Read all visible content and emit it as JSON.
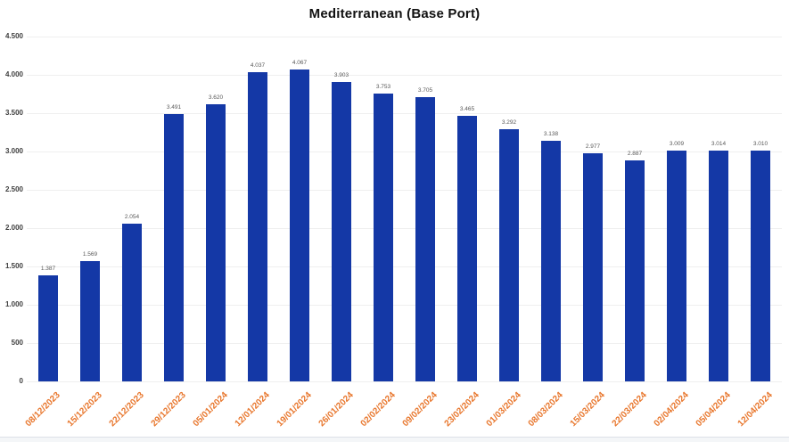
{
  "title": "Mediterranean (Base Port)",
  "colors": {
    "bar": "#1438a6",
    "date_label": "#e8762c",
    "value_label": "#595959",
    "axis_tick_label": "#3f3f3f",
    "gridline": "#efefef"
  },
  "chart_data": {
    "type": "bar",
    "title": "Mediterranean (Base Port)",
    "xlabel": "",
    "ylabel": "",
    "categories": [
      "08/12/2023",
      "15/12/2023",
      "22/12/2023",
      "29/12/2023",
      "05/01/2024",
      "12/01/2024",
      "19/01/2024",
      "26/01/2024",
      "02/02/2024",
      "09/02/2024",
      "23/02/2024",
      "01/03/2024",
      "08/03/2024",
      "15/03/2024",
      "22/03/2024",
      "02/04/2024",
      "05/04/2024",
      "12/04/2024"
    ],
    "values": [
      1387,
      1569,
      2054,
      3491,
      3620,
      4037,
      4067,
      3903,
      3753,
      3705,
      3465,
      3292,
      3138,
      2977,
      2887,
      3009,
      3014,
      3010
    ],
    "value_labels": [
      "1.387",
      "1.569",
      "2.054",
      "3.491",
      "3.620",
      "4.037",
      "4.067",
      "3.903",
      "3.753",
      "3.705",
      "3.465",
      "3.292",
      "3.138",
      "2.977",
      "2.887",
      "3.009",
      "3.014",
      "3.010"
    ],
    "y_tick_values": [
      4500,
      4000,
      3500,
      3000,
      2500,
      2000,
      1500,
      1000,
      500,
      0
    ],
    "y_tick_labels": [
      "4.500",
      "4.000",
      "3.500",
      "3.000",
      "2.500",
      "2.000",
      "1.500",
      "1.000",
      "500",
      "0"
    ],
    "ylim": [
      0,
      4500
    ],
    "grid": true,
    "legend": false,
    "bar_color": "#1438a6",
    "x_tick_label_color": "#e8762c",
    "x_tick_label_rotation_deg": -45
  }
}
